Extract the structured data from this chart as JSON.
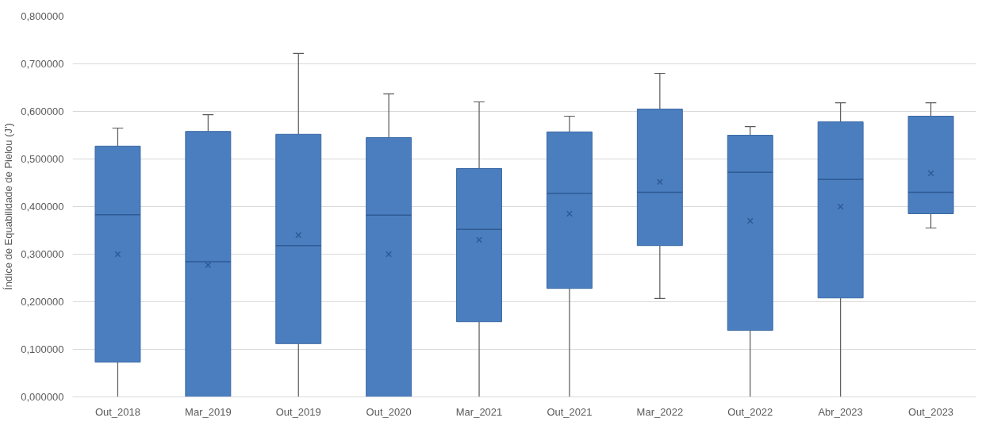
{
  "chart_data": {
    "type": "box",
    "ylabel": "Índice de Equabilidade de Pielou (J')",
    "categories": [
      "Out_2018",
      "Mar_2019",
      "Out_2019",
      "Out_2020",
      "Mar_2021",
      "Out_2021",
      "Mar_2022",
      "Out_2022",
      "Abr_2023",
      "Out_2023"
    ],
    "boxes": [
      {
        "low": 0,
        "q1": 0.073,
        "median": 0.383,
        "q3": 0.527,
        "high": 0.565,
        "mean": 0.3
      },
      {
        "low": 0,
        "q1": 0,
        "median": 0.284,
        "q3": 0.558,
        "high": 0.593,
        "mean": 0.277
      },
      {
        "low": 0,
        "q1": 0.112,
        "median": 0.318,
        "q3": 0.552,
        "high": 0.722,
        "mean": 0.34
      },
      {
        "low": 0,
        "q1": 0,
        "median": 0.382,
        "q3": 0.545,
        "high": 0.637,
        "mean": 0.3
      },
      {
        "low": 0,
        "q1": 0.158,
        "median": 0.352,
        "q3": 0.48,
        "high": 0.62,
        "mean": 0.33
      },
      {
        "low": 0,
        "q1": 0.228,
        "median": 0.428,
        "q3": 0.557,
        "high": 0.59,
        "mean": 0.385
      },
      {
        "low": 0.207,
        "q1": 0.318,
        "median": 0.43,
        "q3": 0.605,
        "high": 0.68,
        "mean": 0.452
      },
      {
        "low": 0,
        "q1": 0.14,
        "median": 0.472,
        "q3": 0.55,
        "high": 0.568,
        "mean": 0.37
      },
      {
        "low": 0,
        "q1": 0.208,
        "median": 0.457,
        "q3": 0.578,
        "high": 0.618,
        "mean": 0.4
      },
      {
        "low": 0.355,
        "q1": 0.385,
        "median": 0.43,
        "q3": 0.59,
        "high": 0.618,
        "mean": 0.47
      }
    ],
    "color": "#4a7ebf",
    "ylim": [
      0,
      0.8
    ],
    "yticks": [
      {
        "value": 0,
        "label": "0,000000"
      },
      {
        "value": 0.1,
        "label": "0,100000"
      },
      {
        "value": 0.2,
        "label": "0,200000"
      },
      {
        "value": 0.3,
        "label": "0,300000"
      },
      {
        "value": 0.4,
        "label": "0,400000"
      },
      {
        "value": 0.5,
        "label": "0,500000"
      },
      {
        "value": 0.6,
        "label": "0,600000"
      },
      {
        "value": 0.7,
        "label": "0,700000"
      },
      {
        "value": 0.8,
        "label": "0,800000"
      }
    ],
    "grid": "y"
  }
}
